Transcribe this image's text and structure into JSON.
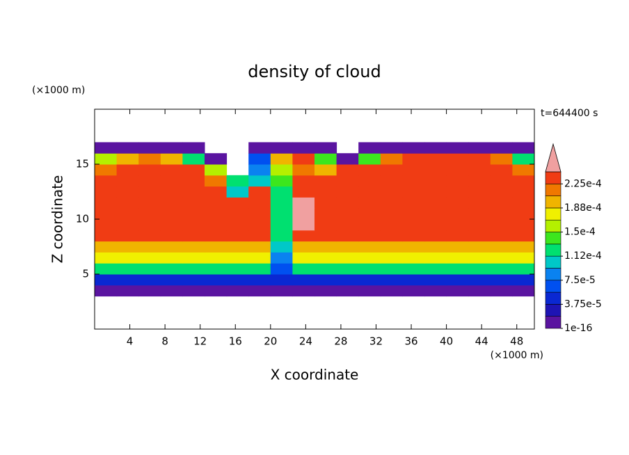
{
  "chart_data": {
    "type": "contour",
    "title": "density of cloud",
    "xlabel": "X coordinate",
    "ylabel": "Z coordinate",
    "x_unit": "(×1000 m)",
    "y_unit": "(×1000 m)",
    "time_label": "t=644400 s",
    "xlim": [
      0,
      50
    ],
    "ylim": [
      0,
      20
    ],
    "xticks": [
      4,
      8,
      12,
      16,
      20,
      24,
      28,
      32,
      36,
      40,
      44,
      48
    ],
    "yticks": [
      5,
      10,
      15
    ],
    "x": [
      0,
      2.5,
      5,
      7.5,
      10,
      12.5,
      15,
      17.5,
      20,
      22.5,
      25,
      27.5,
      30,
      32.5,
      35,
      37.5,
      40,
      42.5,
      45,
      47.5,
      50
    ],
    "y": [
      3,
      4,
      5,
      6,
      7,
      8,
      9,
      10,
      11,
      12,
      13,
      14,
      15,
      16,
      17
    ],
    "z": [
      [
        1e-05,
        1e-05,
        1e-05,
        1e-05,
        1e-05,
        1e-05,
        1e-05,
        1e-05,
        1e-05,
        1e-05,
        1e-05,
        1e-05,
        1e-05,
        1e-05,
        1e-05,
        1e-05,
        1e-05,
        1e-05,
        1e-05,
        1e-05
      ],
      [
        5e-05,
        5e-05,
        5e-05,
        5e-05,
        5e-05,
        5e-05,
        5e-05,
        5e-05,
        4e-05,
        5e-05,
        5e-05,
        5e-05,
        5e-05,
        5e-05,
        5e-05,
        5e-05,
        5e-05,
        5e-05,
        5e-05,
        5e-05
      ],
      [
        0.00012,
        0.00012,
        0.00012,
        0.00012,
        0.00012,
        0.00012,
        0.00012,
        0.00012,
        6e-05,
        0.00012,
        0.00012,
        0.00012,
        0.00012,
        0.00012,
        0.00012,
        0.00012,
        0.00012,
        0.00012,
        0.00012,
        0.00012
      ],
      [
        0.00017,
        0.00017,
        0.00017,
        0.00017,
        0.00017,
        0.00017,
        0.00017,
        0.00017,
        8e-05,
        0.00017,
        0.00017,
        0.00017,
        0.00017,
        0.00017,
        0.00017,
        0.00017,
        0.00017,
        0.00017,
        0.00017,
        0.00017
      ],
      [
        0.0002,
        0.0002,
        0.0002,
        0.0002,
        0.0002,
        0.0002,
        0.0002,
        0.0002,
        0.0001,
        0.0002,
        0.0002,
        0.0002,
        0.0002,
        0.0002,
        0.0002,
        0.0002,
        0.0002,
        0.0002,
        0.0002,
        0.0002
      ],
      [
        0.00023,
        0.00023,
        0.00023,
        0.00023,
        0.00023,
        0.00023,
        0.00023,
        0.00023,
        0.00012,
        0.00023,
        0.00023,
        0.00023,
        0.00023,
        0.00023,
        0.00023,
        0.00023,
        0.00023,
        0.00023,
        0.00023,
        0.00023
      ],
      [
        0.00024,
        0.00024,
        0.00024,
        0.00024,
        0.00024,
        0.00024,
        0.00024,
        0.00024,
        0.00013,
        0.00025,
        0.00024,
        0.00024,
        0.00024,
        0.00024,
        0.00024,
        0.00024,
        0.00024,
        0.00024,
        0.00024,
        0.00024
      ],
      [
        0.00024,
        0.00024,
        0.00024,
        0.00024,
        0.00024,
        0.00024,
        0.00024,
        0.00024,
        0.00013,
        0.00025,
        0.00024,
        0.00024,
        0.00024,
        0.00024,
        0.00024,
        0.00024,
        0.00024,
        0.00024,
        0.00024,
        0.00024
      ],
      [
        0.00024,
        0.00024,
        0.00024,
        0.00024,
        0.00024,
        0.00024,
        0.00024,
        0.00024,
        0.00013,
        0.00025,
        0.00024,
        0.00024,
        0.00024,
        0.00024,
        0.00024,
        0.00024,
        0.00024,
        0.00024,
        0.00024,
        0.00024
      ],
      [
        0.00024,
        0.00024,
        0.00024,
        0.00024,
        0.00024,
        0.00024,
        0.00011,
        0.00024,
        0.00013,
        0.00024,
        0.00024,
        0.00024,
        0.00024,
        0.00024,
        0.00024,
        0.00024,
        0.00024,
        0.00024,
        0.00024,
        0.00024
      ],
      [
        0.00024,
        0.00024,
        0.00024,
        0.00024,
        0.00024,
        0.00022,
        0.00012,
        0.0001,
        0.00014,
        0.00024,
        0.00024,
        0.00024,
        0.00024,
        0.00024,
        0.00024,
        0.00024,
        0.00024,
        0.00024,
        0.00024,
        0.00024
      ],
      [
        0.00022,
        0.00024,
        0.00024,
        0.00024,
        0.00023,
        0.00016,
        null,
        9e-05,
        0.00015,
        0.00022,
        0.00019,
        0.00023,
        0.00024,
        0.00024,
        0.00024,
        0.00024,
        0.00024,
        0.00024,
        0.00024,
        0.00022
      ],
      [
        0.00016,
        0.0002,
        0.00021,
        0.00019,
        0.00012,
        1e-05,
        null,
        6e-05,
        0.00019,
        0.00023,
        0.00014,
        1e-05,
        0.00014,
        0.00021,
        0.00023,
        0.00023,
        0.00023,
        0.00023,
        0.00021,
        0.00013
      ],
      [
        1e-05,
        1e-05,
        1e-05,
        1e-05,
        1e-05,
        null,
        null,
        1e-05,
        1e-05,
        1e-05,
        1e-05,
        null,
        1e-05,
        1e-05,
        1e-05,
        1e-05,
        1e-05,
        1e-05,
        1e-05,
        1e-05
      ]
    ],
    "levels": [
      1e-16,
      1.875e-05,
      3.75e-05,
      5.625e-05,
      7.5e-05,
      9.375e-05,
      0.0001125,
      0.00013125,
      0.00015,
      0.00016875,
      0.0001875,
      0.00020625,
      0.000225,
      0.00024375
    ],
    "colors": [
      "#5a14a0",
      "#1e14b4",
      "#0a28d2",
      "#0050f0",
      "#0a82f0",
      "#00c8c8",
      "#00e070",
      "#3ce61e",
      "#b4f000",
      "#f0f000",
      "#f0b400",
      "#f07800",
      "#f03c14"
    ],
    "extend_color": "#f0a0a0",
    "colorbar_ticks": [
      {
        "value": 1e-16,
        "label": "1e-16"
      },
      {
        "value": 3.75e-05,
        "label": "3.75e-5"
      },
      {
        "value": 7.5e-05,
        "label": "7.5e-5"
      },
      {
        "value": 0.0001125,
        "label": "1.12e-4"
      },
      {
        "value": 0.00015,
        "label": "1.5e-4"
      },
      {
        "value": 0.0001875,
        "label": "1.88e-4"
      },
      {
        "value": 0.000225,
        "label": "2.25e-4"
      }
    ]
  }
}
